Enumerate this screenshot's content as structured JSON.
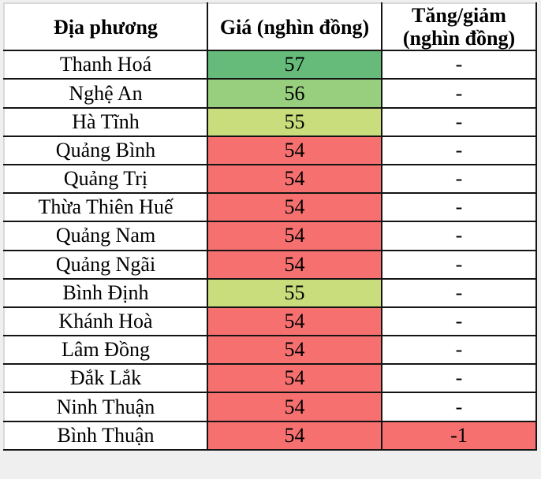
{
  "chart_data": {
    "type": "table",
    "title": "",
    "columns": [
      "Địa phương",
      "Giá (nghìn đồng)",
      "Tăng/giảm (nghìn đồng)"
    ],
    "value_unit": "nghìn đồng",
    "color_scale_note": "cell background encodes price: high=green, mid=yellow-green, low=red",
    "rows": [
      {
        "province": "Thanh Hoá",
        "price": "57",
        "change": "-",
        "price_bg": "#66bb7a",
        "change_bg": "#ffffff"
      },
      {
        "province": "Nghệ An",
        "price": "56",
        "change": "-",
        "price_bg": "#98cf7f",
        "change_bg": "#ffffff"
      },
      {
        "province": "Hà Tĩnh",
        "price": "55",
        "change": "-",
        "price_bg": "#cadd7d",
        "change_bg": "#ffffff"
      },
      {
        "province": "Quảng Bình",
        "price": "54",
        "change": "-",
        "price_bg": "#f77070",
        "change_bg": "#ffffff"
      },
      {
        "province": "Quảng Trị",
        "price": "54",
        "change": "-",
        "price_bg": "#f77070",
        "change_bg": "#ffffff"
      },
      {
        "province": "Thừa Thiên Huế",
        "price": "54",
        "change": "-",
        "price_bg": "#f77070",
        "change_bg": "#ffffff"
      },
      {
        "province": "Quảng Nam",
        "price": "54",
        "change": "-",
        "price_bg": "#f77070",
        "change_bg": "#ffffff"
      },
      {
        "province": "Quảng Ngãi",
        "price": "54",
        "change": "-",
        "price_bg": "#f77070",
        "change_bg": "#ffffff"
      },
      {
        "province": "Bình Định",
        "price": "55",
        "change": "-",
        "price_bg": "#cadd7d",
        "change_bg": "#ffffff"
      },
      {
        "province": "Khánh Hoà",
        "price": "54",
        "change": "-",
        "price_bg": "#f77070",
        "change_bg": "#ffffff"
      },
      {
        "province": "Lâm Đồng",
        "price": "54",
        "change": "-",
        "price_bg": "#f77070",
        "change_bg": "#ffffff"
      },
      {
        "province": "Đắk Lắk",
        "price": "54",
        "change": "-",
        "price_bg": "#f77070",
        "change_bg": "#ffffff"
      },
      {
        "province": "Ninh Thuận",
        "price": "54",
        "change": "-",
        "price_bg": "#f77070",
        "change_bg": "#ffffff"
      },
      {
        "province": "Bình Thuận",
        "price": "54",
        "change": "-1",
        "price_bg": "#f77070",
        "change_bg": "#f77070"
      }
    ],
    "colors": {
      "price_high_green": "#66bb7a",
      "price_mid_green": "#98cf7f",
      "price_mid_yellow_green": "#cadd7d",
      "price_low_red": "#f77070",
      "border": "#141414",
      "page_background": "#efefef",
      "text": "#000000"
    }
  }
}
